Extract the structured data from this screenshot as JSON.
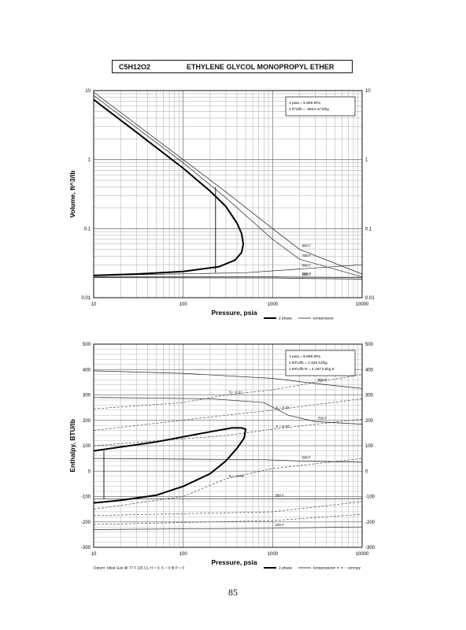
{
  "header": {
    "formula": "C5H12O2",
    "name": "ETHYLENE GLYCOL MONOPROPYL ETHER"
  },
  "page_number": "85",
  "chart_data": [
    {
      "type": "line",
      "xscale": "log",
      "yscale": "log",
      "xlim": [
        10,
        10000
      ],
      "ylim": [
        0.01,
        10
      ],
      "xlabel": "Pressure,  psia",
      "ylabel": "Volume,  ft^3/lb",
      "xticks": [
        "10",
        "100",
        "1000",
        "10000"
      ],
      "yticks": [
        "0.01",
        "0.1",
        "1",
        "10"
      ],
      "grid": true,
      "legend_position": "bottom-right",
      "legend": [
        "2 phase",
        "temperature"
      ],
      "note": [
        "1 psia  =  6.895 kPa",
        "1 ft^3/lb  =  .0624 m^3/kg"
      ],
      "series": [
        {
          "name": "2 phase",
          "points": [
            [
              10,
              7.4
            ],
            [
              30,
              2.5
            ],
            [
              100,
              0.75
            ],
            [
              200,
              0.35
            ],
            [
              300,
              0.21
            ],
            [
              400,
              0.12
            ],
            [
              450,
              0.085
            ],
            [
              470,
              0.06
            ],
            [
              450,
              0.045
            ],
            [
              380,
              0.035
            ],
            [
              250,
              0.028
            ],
            [
              100,
              0.024
            ],
            [
              30,
              0.022
            ],
            [
              10,
              0.021
            ]
          ]
        },
        {
          "name": "tie-line",
          "points": [
            [
              230,
              0.023
            ],
            [
              230,
              0.4
            ]
          ]
        }
      ],
      "isotherms": [
        {
          "label": "900 F",
          "points": [
            [
              10,
              9.5
            ],
            [
              100,
              1.0
            ],
            [
              300,
              0.34
            ],
            [
              1000,
              0.1
            ],
            [
              2000,
              0.05
            ],
            [
              10000,
              0.022
            ]
          ]
        },
        {
          "label": "700 F",
          "points": [
            [
              10,
              8.5
            ],
            [
              100,
              0.9
            ],
            [
              300,
              0.28
            ],
            [
              1000,
              0.07
            ],
            [
              2000,
              0.036
            ],
            [
              10000,
              0.02
            ]
          ]
        },
        {
          "label": "500 F",
          "points": [
            [
              10,
              0.021
            ],
            [
              500,
              0.023
            ],
            [
              2000,
              0.026
            ],
            [
              10000,
              0.03
            ]
          ]
        },
        {
          "label": "300 F",
          "points": [
            [
              10,
              0.02
            ],
            [
              1000,
              0.02
            ],
            [
              2000,
              0.0198
            ],
            [
              10000,
              0.0195
            ]
          ]
        },
        {
          "label": "100 F",
          "points": [
            [
              10,
              0.0195
            ],
            [
              1000,
              0.0193
            ],
            [
              2000,
              0.019
            ],
            [
              10000,
              0.0186
            ]
          ]
        }
      ]
    },
    {
      "type": "line",
      "xscale": "log",
      "xlim": [
        10,
        10000
      ],
      "ylim": [
        -300,
        500
      ],
      "xlabel": "Pressure,  psia",
      "ylabel": "Enthalpy,  BTU/lb",
      "xticks": [
        "10",
        "100",
        "1000",
        "10000"
      ],
      "yticks": [
        "500",
        "400",
        "300",
        "200",
        "100",
        "0",
        "-100",
        "-200",
        "-300"
      ],
      "grid": true,
      "legend_position": "bottom-right",
      "legend": [
        "2 phase",
        "temperature",
        "entropy"
      ],
      "note": [
        "1 psia  =  6.895 kPa",
        "1 BTU/lb  =  2.326 kJ/kg",
        "1 BTU/lb R  =  4.187 kJ/kg K"
      ],
      "datum": "Datum: Ideal Gas @ 77 F (25 C),  H = 0,  S = 0 lb P = 0",
      "series": [
        {
          "name": "2 phase",
          "points": [
            [
              10,
              80
            ],
            [
              50,
              115
            ],
            [
              100,
              135
            ],
            [
              200,
              155
            ],
            [
              350,
              170
            ],
            [
              450,
              170
            ],
            [
              500,
              165
            ],
            [
              480,
              130
            ],
            [
              400,
              90
            ],
            [
              300,
              40
            ],
            [
              200,
              -10
            ],
            [
              100,
              -60
            ],
            [
              50,
              -95
            ],
            [
              20,
              -115
            ],
            [
              10,
              -125
            ]
          ]
        },
        {
          "name": "tie-line",
          "points": [
            [
              13,
              -110
            ],
            [
              13,
              80
            ]
          ]
        }
      ],
      "isotherms": [
        {
          "label": "900 F",
          "points": [
            [
              10,
              395
            ],
            [
              100,
              385
            ],
            [
              1000,
              365
            ],
            [
              3000,
              345
            ],
            [
              10000,
              325
            ]
          ]
        },
        {
          "label": "700 F",
          "points": [
            [
              10,
              290
            ],
            [
              200,
              285
            ],
            [
              800,
              270
            ],
            [
              1500,
              220
            ],
            [
              3000,
              195
            ],
            [
              10000,
              185
            ]
          ]
        },
        {
          "label": "500 F",
          "points": [
            [
              10,
              50
            ],
            [
              800,
              45
            ],
            [
              2000,
              40
            ],
            [
              10000,
              35
            ]
          ]
        },
        {
          "label": "300 F",
          "points": [
            [
              10,
              -110
            ],
            [
              1000,
              -110
            ],
            [
              10000,
              -108
            ]
          ]
        },
        {
          "label": "100 F",
          "points": [
            [
              10,
              -230
            ],
            [
              1000,
              -225
            ],
            [
              10000,
              -220
            ]
          ]
        }
      ],
      "entropy": [
        {
          "label": "S = 0.21",
          "points": [
            [
              10,
              245
            ],
            [
              100,
              270
            ],
            [
              300,
              300
            ],
            [
              1000,
              320
            ],
            [
              3000,
              350
            ],
            [
              10000,
              380
            ]
          ]
        },
        {
          "label": "S = 0.15",
          "points": [
            [
              10,
              160
            ],
            [
              300,
              220
            ],
            [
              1000,
              240
            ],
            [
              10000,
              285
            ]
          ]
        },
        {
          "label": "S = 0.10",
          "points": [
            [
              10,
              100
            ],
            [
              300,
              140
            ],
            [
              1000,
              165
            ],
            [
              10000,
              205
            ]
          ]
        },
        {
          "label": "S = -0.03",
          "points": [
            [
              10,
              -150
            ],
            [
              100,
              -100
            ],
            [
              300,
              -30
            ],
            [
              1000,
              10
            ],
            [
              10000,
              50
            ]
          ]
        },
        {
          "label": "",
          "points": [
            [
              10,
              -175
            ],
            [
              1000,
              -160
            ],
            [
              10000,
              -120
            ]
          ]
        },
        {
          "label": "",
          "points": [
            [
              10,
              -210
            ],
            [
              1000,
              -195
            ],
            [
              10000,
              -170
            ]
          ]
        }
      ]
    }
  ]
}
